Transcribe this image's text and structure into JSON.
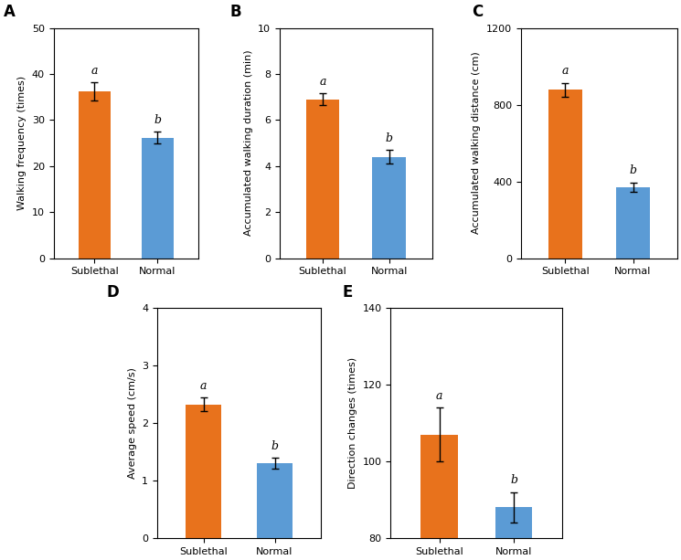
{
  "chart_data": [
    {
      "type": "bar",
      "title": "A",
      "ylabel": "Walking frequency (times)",
      "categories": [
        "Sublethal",
        "Normal"
      ],
      "values": [
        36.2,
        26.2
      ],
      "errors": [
        2.0,
        1.2
      ],
      "annotations": [
        "a",
        "b"
      ],
      "colors": [
        "#E8721C",
        "#5B9BD5"
      ],
      "ylim": [
        0,
        50
      ],
      "yticks": [
        0,
        10,
        20,
        30,
        40,
        50
      ],
      "grid": false
    },
    {
      "type": "bar",
      "title": "B",
      "ylabel": "Accumulated walking duration (min)",
      "categories": [
        "Sublethal",
        "Normal"
      ],
      "values": [
        6.9,
        4.4
      ],
      "errors": [
        0.25,
        0.3
      ],
      "annotations": [
        "a",
        "b"
      ],
      "colors": [
        "#E8721C",
        "#5B9BD5"
      ],
      "ylim": [
        0,
        10
      ],
      "yticks": [
        0,
        2,
        4,
        6,
        8,
        10
      ],
      "grid": false
    },
    {
      "type": "bar",
      "title": "C",
      "ylabel": "Accumulated walking distance (cm)",
      "categories": [
        "Sublethal",
        "Normal"
      ],
      "values": [
        878,
        370
      ],
      "errors": [
        35,
        25
      ],
      "annotations": [
        "a",
        "b"
      ],
      "colors": [
        "#E8721C",
        "#5B9BD5"
      ],
      "ylim": [
        0,
        1200
      ],
      "yticks": [
        0,
        400,
        800,
        1200
      ],
      "grid": false
    },
    {
      "type": "bar",
      "title": "D",
      "ylabel": "Average speed (cm/s)",
      "categories": [
        "Sublethal",
        "Normal"
      ],
      "values": [
        2.32,
        1.3
      ],
      "errors": [
        0.12,
        0.1
      ],
      "annotations": [
        "a",
        "b"
      ],
      "colors": [
        "#E8721C",
        "#5B9BD5"
      ],
      "ylim": [
        0,
        4
      ],
      "yticks": [
        0,
        1,
        2,
        3,
        4
      ],
      "grid": false
    },
    {
      "type": "bar",
      "title": "E",
      "ylabel": "Direction changes (times)",
      "categories": [
        "Sublethal",
        "Normal"
      ],
      "values": [
        107,
        88
      ],
      "errors": [
        7,
        4
      ],
      "annotations": [
        "a",
        "b"
      ],
      "colors": [
        "#E8721C",
        "#5B9BD5"
      ],
      "ylim": [
        80,
        140
      ],
      "yticks": [
        80,
        100,
        120,
        140
      ],
      "grid": false
    }
  ]
}
